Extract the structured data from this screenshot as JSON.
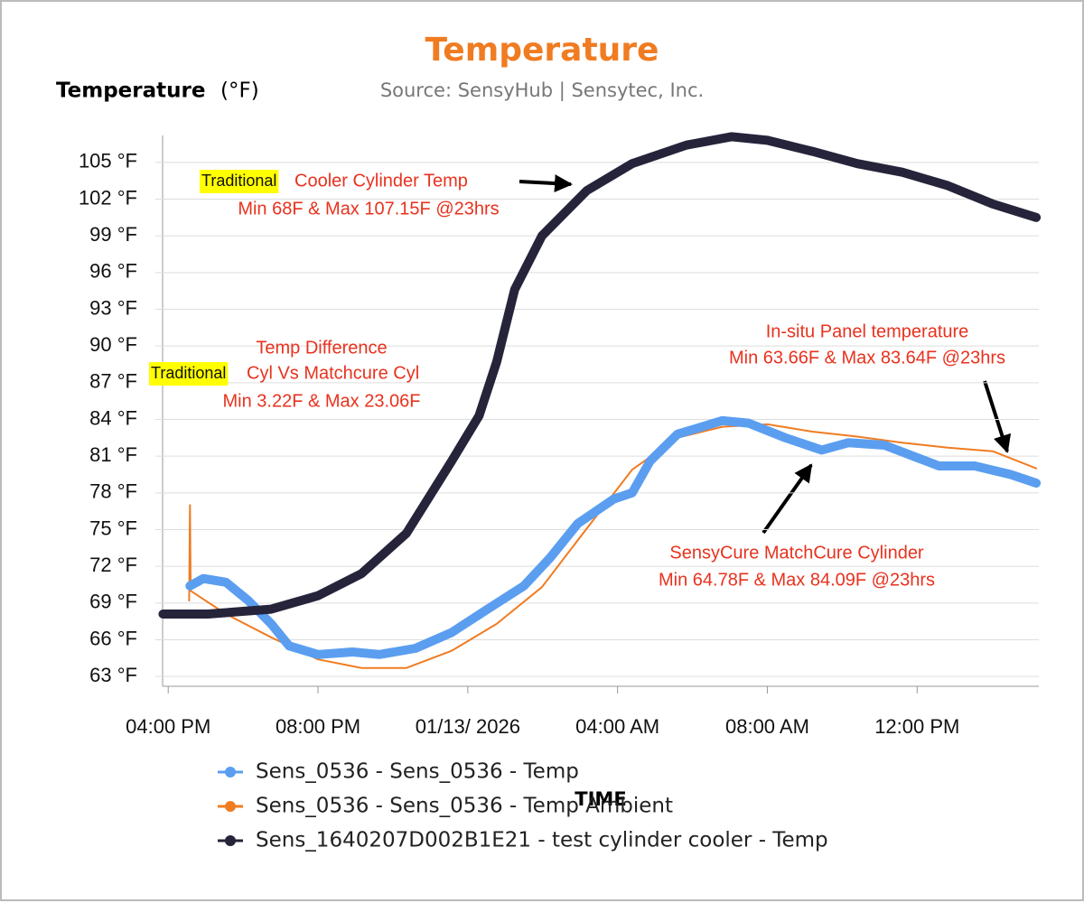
{
  "chart_data": {
    "type": "line",
    "title": "Temperature",
    "subtitle": "Source: SensyHub | Sensytec, Inc.",
    "y_label": "Temperature",
    "y_unit": "(°F)",
    "x_label": "TIME",
    "xlim": [
      15.85,
      39.25
    ],
    "xticks": [
      {
        "value": 16,
        "label": "04:00 PM"
      },
      {
        "value": 20,
        "label": "08:00 PM"
      },
      {
        "value": 24,
        "label": "01/13/ 2026"
      },
      {
        "value": 28,
        "label": "04:00 AM"
      },
      {
        "value": 32,
        "label": "08:00 AM"
      },
      {
        "value": 36,
        "label": "12:00 PM"
      }
    ],
    "ylim": [
      62.2,
      107.2
    ],
    "yticks": [
      {
        "value": 63,
        "label": "63 °F"
      },
      {
        "value": 66,
        "label": "66 °F"
      },
      {
        "value": 69,
        "label": "69 °F"
      },
      {
        "value": 72,
        "label": "72 °F"
      },
      {
        "value": 75,
        "label": "75 °F"
      },
      {
        "value": 78,
        "label": "78 °F"
      },
      {
        "value": 81,
        "label": "81 °F"
      },
      {
        "value": 84,
        "label": "84 °F"
      },
      {
        "value": 87,
        "label": "87 °F"
      },
      {
        "value": 90,
        "label": "90 °F"
      },
      {
        "value": 93,
        "label": "93 °F"
      },
      {
        "value": 96,
        "label": "96 °F"
      },
      {
        "value": 99,
        "label": "99 °F"
      },
      {
        "value": 102,
        "label": "102 °F"
      },
      {
        "value": 105,
        "label": "105 °F"
      }
    ],
    "grid": true,
    "series": [
      {
        "name": "Sens_0536 - Sens_0536 - Temp",
        "color": "#5b9ef0",
        "x": [
          16.58,
          16.94,
          17.54,
          18.14,
          18.75,
          19.23,
          20,
          20.92,
          21.64,
          22.6,
          23.57,
          24.53,
          25.5,
          26.2,
          26.94,
          27.9,
          28.39,
          28.87,
          29.6,
          30.8,
          31.5,
          32.48,
          33.45,
          34.17,
          35.13,
          36.58,
          37.54,
          38.5,
          39.18
        ],
        "values": [
          70.4,
          71,
          70.7,
          69.2,
          67.3,
          65.5,
          64.8,
          65,
          64.8,
          65.3,
          66.6,
          68.5,
          70.4,
          72.7,
          75.5,
          77.5,
          78,
          80.6,
          82.8,
          83.9,
          83.7,
          82.5,
          81.5,
          82.1,
          81.9,
          80.2,
          80.2,
          79.5,
          78.8
        ]
      },
      {
        "name": "Sens_0536 - Sens_0536 - Temp Ambient",
        "color": "#f07c22",
        "x": [
          16.56,
          16.58,
          16.6,
          17.54,
          18.75,
          20,
          21.16,
          22.36,
          23.57,
          24.77,
          25.98,
          27.18,
          28.39,
          29.6,
          30.8,
          32,
          33.2,
          34.4,
          35.6,
          36.82,
          38.02,
          39.18
        ],
        "values": [
          69.2,
          77,
          70,
          68.1,
          66.2,
          64.4,
          63.7,
          63.7,
          65.1,
          67.3,
          70.3,
          75.1,
          79.9,
          82.5,
          83.4,
          83.6,
          83,
          82.6,
          82.1,
          81.7,
          81.4,
          80
        ]
      },
      {
        "name": "Sens_1640207D002B1E21 - test cylinder cooler - Temp",
        "color": "#25243a",
        "x": [
          15.86,
          17.06,
          18.75,
          20,
          21.16,
          22.36,
          23.57,
          24.3,
          24.77,
          25.25,
          25.98,
          27.18,
          28.39,
          29.83,
          31.04,
          32,
          33.2,
          34.4,
          35.6,
          36.82,
          38.02,
          39.18
        ],
        "values": [
          68.1,
          68.1,
          68.5,
          69.6,
          71.4,
          74.7,
          80.6,
          84.3,
          88.7,
          94.6,
          99,
          102.7,
          104.9,
          106.4,
          107.1,
          106.8,
          105.9,
          104.9,
          104.2,
          103.1,
          101.6,
          100.5
        ]
      }
    ],
    "annotations": [
      {
        "label": "Traditional",
        "lines": [
          "Cooler Cylinder Temp",
          "Min 68F & Max 107.15F @23hrs"
        ]
      },
      {
        "label": "Traditional",
        "lines": [
          "Temp Difference",
          "Cyl Vs Matchcure Cyl",
          "Min 3.22F & Max 23.06F"
        ]
      },
      {
        "lines": [
          "In-situ Panel temperature",
          "Min 63.66F & Max 83.64F @23hrs"
        ]
      },
      {
        "lines": [
          "SensyCure MatchCure Cylinder",
          "Min 64.78F & Max 84.09F @23hrs"
        ]
      }
    ]
  }
}
